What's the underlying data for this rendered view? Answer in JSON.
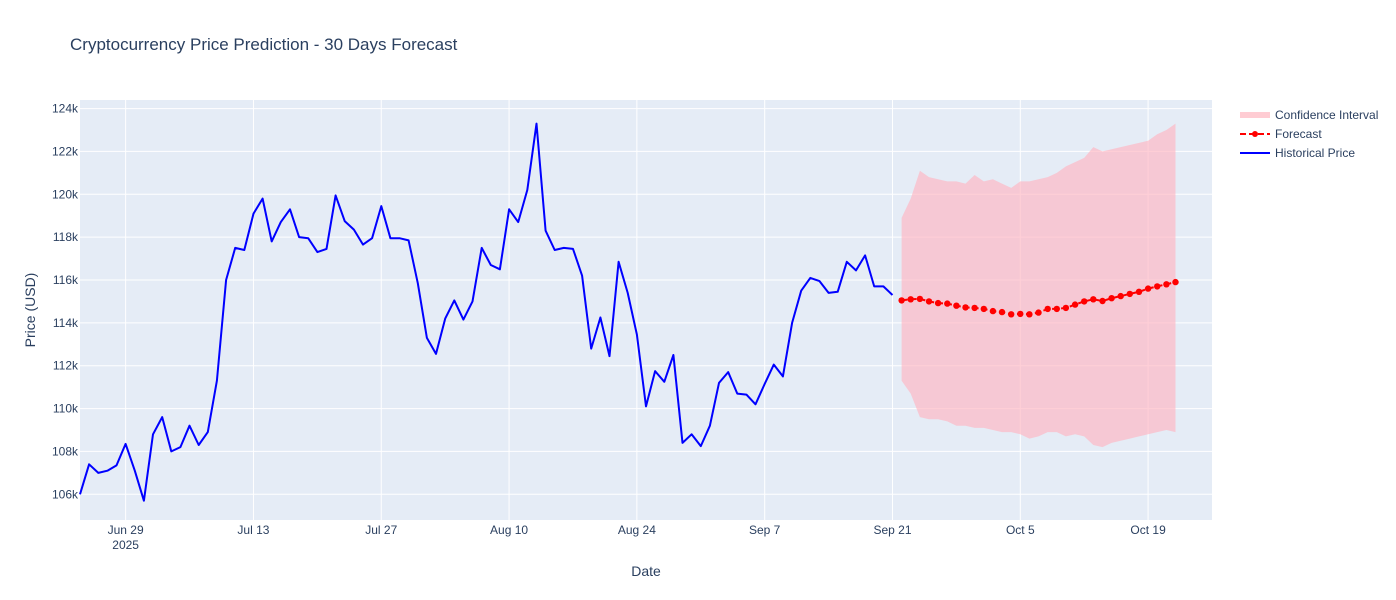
{
  "chart_data": {
    "type": "line",
    "title": "Cryptocurrency Price Prediction - 30 Days Forecast",
    "xlabel": "Date",
    "ylabel": "Price (USD)",
    "xlim": [
      "2025-06-24",
      "2025-10-26"
    ],
    "ylim": [
      104800,
      124400
    ],
    "x_ticks": [
      {
        "date": "2025-06-29",
        "label": "Jun 29",
        "sublabel": "2025"
      },
      {
        "date": "2025-07-13",
        "label": "Jul 13"
      },
      {
        "date": "2025-07-27",
        "label": "Jul 27"
      },
      {
        "date": "2025-08-10",
        "label": "Aug 10"
      },
      {
        "date": "2025-08-24",
        "label": "Aug 24"
      },
      {
        "date": "2025-09-07",
        "label": "Sep 7"
      },
      {
        "date": "2025-09-21",
        "label": "Sep 21"
      },
      {
        "date": "2025-10-05",
        "label": "Oct 5"
      },
      {
        "date": "2025-10-19",
        "label": "Oct 19"
      }
    ],
    "y_ticks": [
      {
        "value": 106000,
        "label": "106k"
      },
      {
        "value": 108000,
        "label": "108k"
      },
      {
        "value": 110000,
        "label": "110k"
      },
      {
        "value": 112000,
        "label": "112k"
      },
      {
        "value": 114000,
        "label": "114k"
      },
      {
        "value": 116000,
        "label": "116k"
      },
      {
        "value": 118000,
        "label": "118k"
      },
      {
        "value": 120000,
        "label": "120k"
      },
      {
        "value": 122000,
        "label": "122k"
      },
      {
        "value": 124000,
        "label": "124k"
      }
    ],
    "grid": true,
    "legend_position": "top-right",
    "series": [
      {
        "name": "Confidence Interval",
        "type": "band",
        "color": "#ffb6c1",
        "x": [
          "2025-09-22",
          "2025-09-23",
          "2025-09-24",
          "2025-09-25",
          "2025-09-26",
          "2025-09-27",
          "2025-09-28",
          "2025-09-29",
          "2025-09-30",
          "2025-10-01",
          "2025-10-02",
          "2025-10-03",
          "2025-10-04",
          "2025-10-05",
          "2025-10-06",
          "2025-10-07",
          "2025-10-08",
          "2025-10-09",
          "2025-10-10",
          "2025-10-11",
          "2025-10-12",
          "2025-10-13",
          "2025-10-14",
          "2025-10-15",
          "2025-10-16",
          "2025-10-17",
          "2025-10-18",
          "2025-10-19",
          "2025-10-20",
          "2025-10-21",
          "2025-10-22"
        ],
        "upper": [
          118900,
          119800,
          121100,
          120800,
          120700,
          120600,
          120600,
          120500,
          120900,
          120600,
          120700,
          120500,
          120300,
          120600,
          120600,
          120700,
          120800,
          121000,
          121300,
          121500,
          121700,
          122200,
          122000,
          122100,
          122200,
          122300,
          122400,
          122500,
          122800,
          123000,
          123300
        ],
        "lower": [
          111300,
          110700,
          109600,
          109500,
          109500,
          109400,
          109200,
          109200,
          109100,
          109100,
          109000,
          108900,
          108900,
          108800,
          108600,
          108700,
          108900,
          108900,
          108700,
          108800,
          108700,
          108300,
          108200,
          108400,
          108500,
          108600,
          108700,
          108800,
          108900,
          109000,
          108900
        ]
      },
      {
        "name": "Forecast",
        "type": "line",
        "color": "#ff0000",
        "dash": true,
        "markers": true,
        "x": [
          "2025-09-22",
          "2025-09-23",
          "2025-09-24",
          "2025-09-25",
          "2025-09-26",
          "2025-09-27",
          "2025-09-28",
          "2025-09-29",
          "2025-09-30",
          "2025-10-01",
          "2025-10-02",
          "2025-10-03",
          "2025-10-04",
          "2025-10-05",
          "2025-10-06",
          "2025-10-07",
          "2025-10-08",
          "2025-10-09",
          "2025-10-10",
          "2025-10-11",
          "2025-10-12",
          "2025-10-13",
          "2025-10-14",
          "2025-10-15",
          "2025-10-16",
          "2025-10-17",
          "2025-10-18",
          "2025-10-19",
          "2025-10-20",
          "2025-10-21",
          "2025-10-22"
        ],
        "values": [
          115050,
          115100,
          115120,
          115000,
          114920,
          114900,
          114800,
          114720,
          114700,
          114650,
          114550,
          114500,
          114400,
          114420,
          114400,
          114480,
          114650,
          114650,
          114700,
          114850,
          115000,
          115100,
          115020,
          115150,
          115250,
          115350,
          115450,
          115600,
          115700,
          115800,
          115900
        ]
      },
      {
        "name": "Historical Price",
        "type": "line",
        "color": "#0000ff",
        "x": [
          "2025-06-24",
          "2025-06-25",
          "2025-06-26",
          "2025-06-27",
          "2025-06-28",
          "2025-06-29",
          "2025-06-30",
          "2025-07-01",
          "2025-07-02",
          "2025-07-03",
          "2025-07-04",
          "2025-07-05",
          "2025-07-06",
          "2025-07-07",
          "2025-07-08",
          "2025-07-09",
          "2025-07-10",
          "2025-07-11",
          "2025-07-12",
          "2025-07-13",
          "2025-07-14",
          "2025-07-15",
          "2025-07-16",
          "2025-07-17",
          "2025-07-18",
          "2025-07-19",
          "2025-07-20",
          "2025-07-21",
          "2025-07-22",
          "2025-07-23",
          "2025-07-24",
          "2025-07-25",
          "2025-07-26",
          "2025-07-27",
          "2025-07-28",
          "2025-07-29",
          "2025-07-30",
          "2025-07-31",
          "2025-08-01",
          "2025-08-02",
          "2025-08-03",
          "2025-08-04",
          "2025-08-05",
          "2025-08-06",
          "2025-08-07",
          "2025-08-08",
          "2025-08-09",
          "2025-08-10",
          "2025-08-11",
          "2025-08-12",
          "2025-08-13",
          "2025-08-14",
          "2025-08-15",
          "2025-08-16",
          "2025-08-17",
          "2025-08-18",
          "2025-08-19",
          "2025-08-20",
          "2025-08-21",
          "2025-08-22",
          "2025-08-23",
          "2025-08-24",
          "2025-08-25",
          "2025-08-26",
          "2025-08-27",
          "2025-08-28",
          "2025-08-29",
          "2025-08-30",
          "2025-08-31",
          "2025-09-01",
          "2025-09-02",
          "2025-09-03",
          "2025-09-04",
          "2025-09-05",
          "2025-09-06",
          "2025-09-07",
          "2025-09-08",
          "2025-09-09",
          "2025-09-10",
          "2025-09-11",
          "2025-09-12",
          "2025-09-13",
          "2025-09-14",
          "2025-09-15",
          "2025-09-16",
          "2025-09-17",
          "2025-09-18",
          "2025-09-19",
          "2025-09-20",
          "2025-09-21"
        ],
        "values": [
          106000,
          107400,
          107000,
          107100,
          107350,
          108350,
          107100,
          105700,
          108800,
          109600,
          108000,
          108200,
          109200,
          108300,
          108900,
          111300,
          116000,
          117500,
          117400,
          119100,
          119800,
          117800,
          118700,
          119300,
          118000,
          117950,
          117300,
          117450,
          119950,
          118750,
          118350,
          117650,
          117950,
          119450,
          117950,
          117950,
          117850,
          115850,
          113300,
          112550,
          114200,
          115050,
          114150,
          115000,
          117500,
          116700,
          116500,
          119300,
          118700,
          120200,
          123300,
          118300,
          117400,
          117500,
          117450,
          116200,
          112800,
          114250,
          112450,
          116850,
          115400,
          113450,
          110100,
          111750,
          111250,
          112500,
          108400,
          108800,
          108250,
          109200,
          111200,
          111700,
          110700,
          110650,
          110200,
          111150,
          112050,
          111500,
          114000,
          115500,
          116100,
          115950,
          115400,
          115450,
          116850,
          116450,
          117150,
          115700,
          115700,
          115300
        ]
      }
    ]
  }
}
